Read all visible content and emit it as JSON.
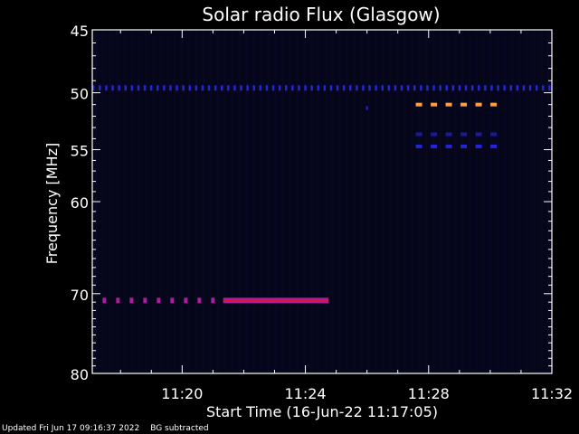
{
  "colors": {
    "background": "#000000",
    "plot_background": "#06061a",
    "axis": "#ffffff",
    "band_blue": "#2424d8",
    "band_orange": "#ffa040",
    "band_red": "#d8183c",
    "band_magenta": "#b01aa0"
  },
  "footer": {
    "updated": "Updated Fri Jun 17 09:16:37 2022",
    "note": "BG subtracted"
  },
  "chart_data": {
    "type": "heatmap",
    "title": "Solar radio Flux (Glasgow)",
    "xlabel": "Start Time (16-Jun-22 11:17:05)",
    "ylabel": "Frequency [MHz]",
    "xlim": [
      "11:17:05",
      "11:32:00"
    ],
    "ylim": [
      45,
      80
    ],
    "y_scale": "log",
    "y_inverted": true,
    "x_ticks": [
      "11:20",
      "11:24",
      "11:28",
      "11:32"
    ],
    "y_ticks": [
      45,
      50,
      55,
      60,
      70,
      80
    ],
    "grid": false,
    "emission_bands": [
      {
        "freq": 49.6,
        "start": "11:17:05",
        "end": "11:32:00",
        "intensity": "medium",
        "pattern": "dotted"
      },
      {
        "freq": 51.0,
        "start": "11:27:35",
        "end": "11:30:25",
        "intensity": "high",
        "pattern": "dashed"
      },
      {
        "freq": 53.6,
        "start": "11:27:35",
        "end": "11:30:25",
        "intensity": "low",
        "pattern": "dashed"
      },
      {
        "freq": 54.7,
        "start": "11:27:35",
        "end": "11:30:25",
        "intensity": "medium",
        "pattern": "dashed"
      },
      {
        "freq": 70.8,
        "start": "11:17:25",
        "end": "11:21:20",
        "intensity": "high",
        "pattern": "dashed"
      },
      {
        "freq": 70.8,
        "start": "11:21:20",
        "end": "11:24:45",
        "intensity": "high",
        "pattern": "solid"
      }
    ]
  }
}
